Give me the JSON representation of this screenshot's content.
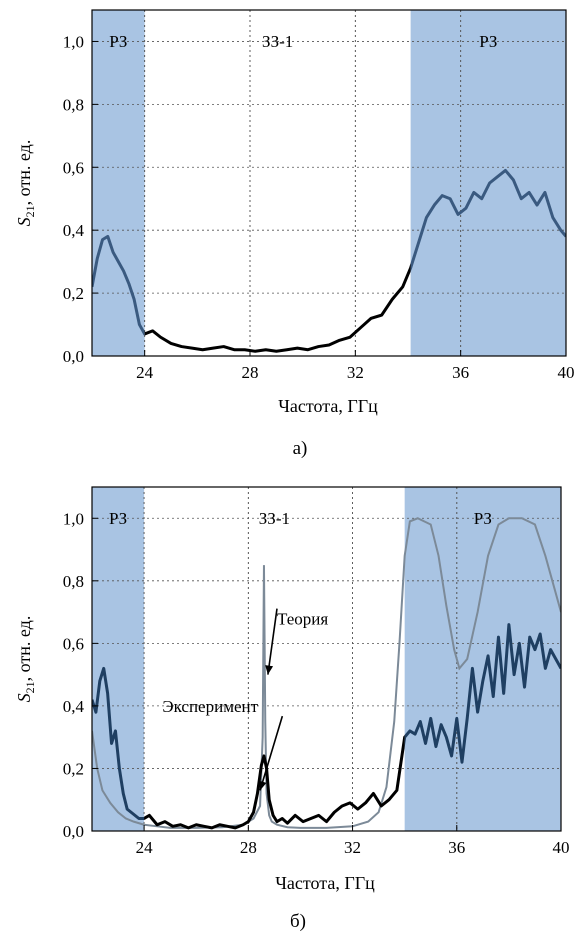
{
  "chart_data": [
    {
      "type": "line",
      "panel_label": "а)",
      "xlabel": "Частота, ГГц",
      "ylabel_main": "S",
      "ylabel_sub": "21",
      "ylabel_rest": ", отн. ед.",
      "xlim": [
        22,
        40
      ],
      "ylim": [
        0,
        1.1
      ],
      "xticks": [
        24,
        28,
        32,
        36,
        40
      ],
      "xtick_labels": [
        "24",
        "28",
        "32",
        "36",
        "40"
      ],
      "yticks": [
        0,
        0.2,
        0.4,
        0.6,
        0.8,
        1.0
      ],
      "ytick_labels": [
        "0,0",
        "0,2",
        "0,4",
        "0,6",
        "0,8",
        "1,0"
      ],
      "grid": true,
      "bands": [
        {
          "label": "РЗ",
          "x0": 22,
          "x1": 24,
          "shaded": true
        },
        {
          "label": "ЗЗ-1",
          "x0": 24,
          "x1": 34.1,
          "shaded": false
        },
        {
          "label": "РЗ",
          "x0": 34.1,
          "x1": 40,
          "shaded": true
        }
      ],
      "band_colors": {
        "shade": "#a9c4e3",
        "line_in_band": "#3a5a80",
        "line_out_band": "#000000"
      },
      "series": [
        {
          "color": "#000000",
          "x": [
            22.0,
            22.2,
            22.4,
            22.6,
            22.8,
            23.0,
            23.2,
            23.4,
            23.6,
            23.8,
            24.0,
            24.3,
            24.6,
            25.0,
            25.4,
            25.8,
            26.2,
            26.6,
            27.0,
            27.4,
            27.8,
            28.2,
            28.6,
            29.0,
            29.4,
            29.8,
            30.2,
            30.6,
            31.0,
            31.4,
            31.8,
            32.2,
            32.6,
            33.0,
            33.4,
            33.8,
            34.1,
            34.4,
            34.7,
            35.0,
            35.3,
            35.6,
            35.9,
            36.2,
            36.5,
            36.8,
            37.1,
            37.4,
            37.7,
            38.0,
            38.3,
            38.6,
            38.9,
            39.2,
            39.5,
            39.8,
            40.0
          ],
          "y": [
            0.22,
            0.31,
            0.37,
            0.38,
            0.33,
            0.3,
            0.27,
            0.23,
            0.18,
            0.1,
            0.07,
            0.08,
            0.06,
            0.04,
            0.03,
            0.025,
            0.02,
            0.025,
            0.03,
            0.02,
            0.02,
            0.015,
            0.02,
            0.015,
            0.02,
            0.025,
            0.02,
            0.03,
            0.035,
            0.05,
            0.06,
            0.09,
            0.12,
            0.13,
            0.18,
            0.22,
            0.28,
            0.36,
            0.44,
            0.48,
            0.51,
            0.5,
            0.45,
            0.47,
            0.52,
            0.5,
            0.55,
            0.57,
            0.59,
            0.56,
            0.5,
            0.52,
            0.48,
            0.52,
            0.44,
            0.4,
            0.38
          ]
        }
      ]
    },
    {
      "type": "line",
      "panel_label": "б)",
      "xlabel": "Частота, ГГц",
      "ylabel_main": "S",
      "ylabel_sub": "21",
      "ylabel_rest": ", отн. ед.",
      "xlim": [
        22,
        40
      ],
      "ylim": [
        0,
        1.1
      ],
      "xticks": [
        24,
        28,
        32,
        36,
        40
      ],
      "xtick_labels": [
        "24",
        "28",
        "32",
        "36",
        "40"
      ],
      "yticks": [
        0,
        0.2,
        0.4,
        0.6,
        0.8,
        1.0
      ],
      "ytick_labels": [
        "0,0",
        "0,2",
        "0,4",
        "0,6",
        "0,8",
        "1,0"
      ],
      "grid": true,
      "bands": [
        {
          "label": "РЗ",
          "x0": 22,
          "x1": 24,
          "shaded": true
        },
        {
          "label": "ЗЗ-1",
          "x0": 24,
          "x1": 34.0,
          "shaded": false
        },
        {
          "label": "РЗ",
          "x0": 34.0,
          "x1": 40,
          "shaded": true
        }
      ],
      "band_colors": {
        "shade": "#a9c4e3",
        "line_in_band": "#1f3f62",
        "line_out_band": "#000000",
        "theory": "#7c8a98"
      },
      "annotations": [
        {
          "text": "Теория",
          "x": 29.1,
          "y": 0.66,
          "arrow_to": [
            28.75,
            0.5
          ]
        },
        {
          "text": "Эксперимент",
          "x": 24.7,
          "y": 0.38,
          "arrow_to": [
            28.45,
            0.13
          ]
        }
      ],
      "series": [
        {
          "name": "Теория",
          "color": "#7c8a98",
          "x": [
            22.0,
            22.2,
            22.4,
            22.7,
            23.0,
            23.3,
            23.6,
            24.0,
            24.5,
            25.0,
            26.0,
            27.0,
            27.8,
            28.2,
            28.45,
            28.55,
            28.6,
            28.65,
            28.7,
            28.8,
            28.9,
            29.1,
            29.5,
            30.0,
            31.0,
            32.0,
            32.6,
            33.0,
            33.3,
            33.6,
            33.8,
            34.0,
            34.2,
            34.5,
            35.0,
            35.3,
            35.6,
            35.9,
            36.1,
            36.4,
            36.8,
            37.2,
            37.6,
            38.0,
            38.5,
            39.0,
            39.4,
            39.8,
            40.0
          ],
          "y": [
            0.32,
            0.2,
            0.13,
            0.09,
            0.06,
            0.04,
            0.03,
            0.02,
            0.015,
            0.01,
            0.01,
            0.012,
            0.02,
            0.04,
            0.08,
            0.3,
            0.85,
            0.35,
            0.12,
            0.05,
            0.03,
            0.02,
            0.012,
            0.01,
            0.01,
            0.015,
            0.03,
            0.06,
            0.14,
            0.35,
            0.6,
            0.88,
            0.99,
            1.0,
            0.98,
            0.88,
            0.72,
            0.58,
            0.52,
            0.55,
            0.7,
            0.88,
            0.98,
            1.0,
            1.0,
            0.98,
            0.88,
            0.76,
            0.7
          ]
        },
        {
          "name": "Эксперимент",
          "color": "#000000",
          "x": [
            22.0,
            22.15,
            22.3,
            22.45,
            22.6,
            22.75,
            22.9,
            23.05,
            23.2,
            23.35,
            23.5,
            23.65,
            23.8,
            24.0,
            24.2,
            24.5,
            24.8,
            25.1,
            25.4,
            25.7,
            26.0,
            26.3,
            26.6,
            26.9,
            27.2,
            27.5,
            27.8,
            28.0,
            28.2,
            28.35,
            28.5,
            28.6,
            28.7,
            28.8,
            28.95,
            29.1,
            29.3,
            29.5,
            29.8,
            30.1,
            30.4,
            30.7,
            31.0,
            31.3,
            31.6,
            31.9,
            32.2,
            32.5,
            32.8,
            33.1,
            33.4,
            33.7,
            34.0,
            34.2,
            34.4,
            34.6,
            34.8,
            35.0,
            35.2,
            35.4,
            35.6,
            35.8,
            36.0,
            36.2,
            36.4,
            36.6,
            36.8,
            37.0,
            37.2,
            37.4,
            37.6,
            37.8,
            38.0,
            38.2,
            38.4,
            38.6,
            38.8,
            39.0,
            39.2,
            39.4,
            39.6,
            39.8,
            40.0
          ],
          "y": [
            0.42,
            0.38,
            0.48,
            0.52,
            0.44,
            0.28,
            0.32,
            0.2,
            0.12,
            0.07,
            0.06,
            0.05,
            0.04,
            0.04,
            0.05,
            0.02,
            0.03,
            0.015,
            0.02,
            0.01,
            0.02,
            0.015,
            0.01,
            0.02,
            0.015,
            0.01,
            0.02,
            0.03,
            0.06,
            0.12,
            0.21,
            0.24,
            0.2,
            0.1,
            0.05,
            0.03,
            0.04,
            0.025,
            0.05,
            0.03,
            0.04,
            0.05,
            0.03,
            0.06,
            0.08,
            0.09,
            0.07,
            0.09,
            0.12,
            0.08,
            0.1,
            0.13,
            0.3,
            0.32,
            0.31,
            0.35,
            0.28,
            0.36,
            0.27,
            0.34,
            0.3,
            0.24,
            0.36,
            0.22,
            0.36,
            0.52,
            0.38,
            0.48,
            0.56,
            0.43,
            0.62,
            0.44,
            0.66,
            0.5,
            0.6,
            0.46,
            0.62,
            0.58,
            0.63,
            0.52,
            0.58,
            0.55,
            0.52
          ]
        }
      ]
    }
  ]
}
